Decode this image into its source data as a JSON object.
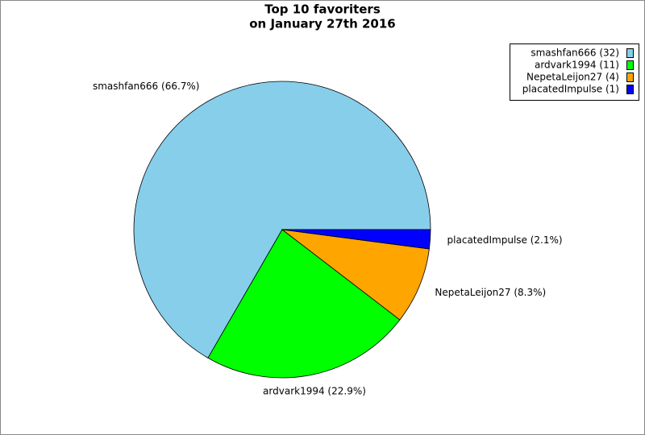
{
  "chart_data": {
    "type": "pie",
    "title": [
      "Top 10 favoriters",
      "on January 27th 2016"
    ],
    "categories": [
      "smashfan666",
      "ardvark1994",
      "NepetaLeijon27",
      "placatedImpulse"
    ],
    "values": [
      32,
      11,
      4,
      1
    ],
    "colors": [
      "#87ceeb",
      "#00ff00",
      "#ffa500",
      "#0000ff"
    ],
    "slice_labels": [
      "smashfan666 (66.7%)",
      "ardvark1994 (22.9%)",
      "NepetaLeijon27 (8.3%)",
      "placatedImpulse (2.1%)"
    ],
    "legend_labels": [
      "smashfan666 (32)",
      "ardvark1994 (11)",
      "NepetaLeijon27 (4)",
      "placatedImpulse (1)"
    ],
    "legend": "top-right"
  }
}
